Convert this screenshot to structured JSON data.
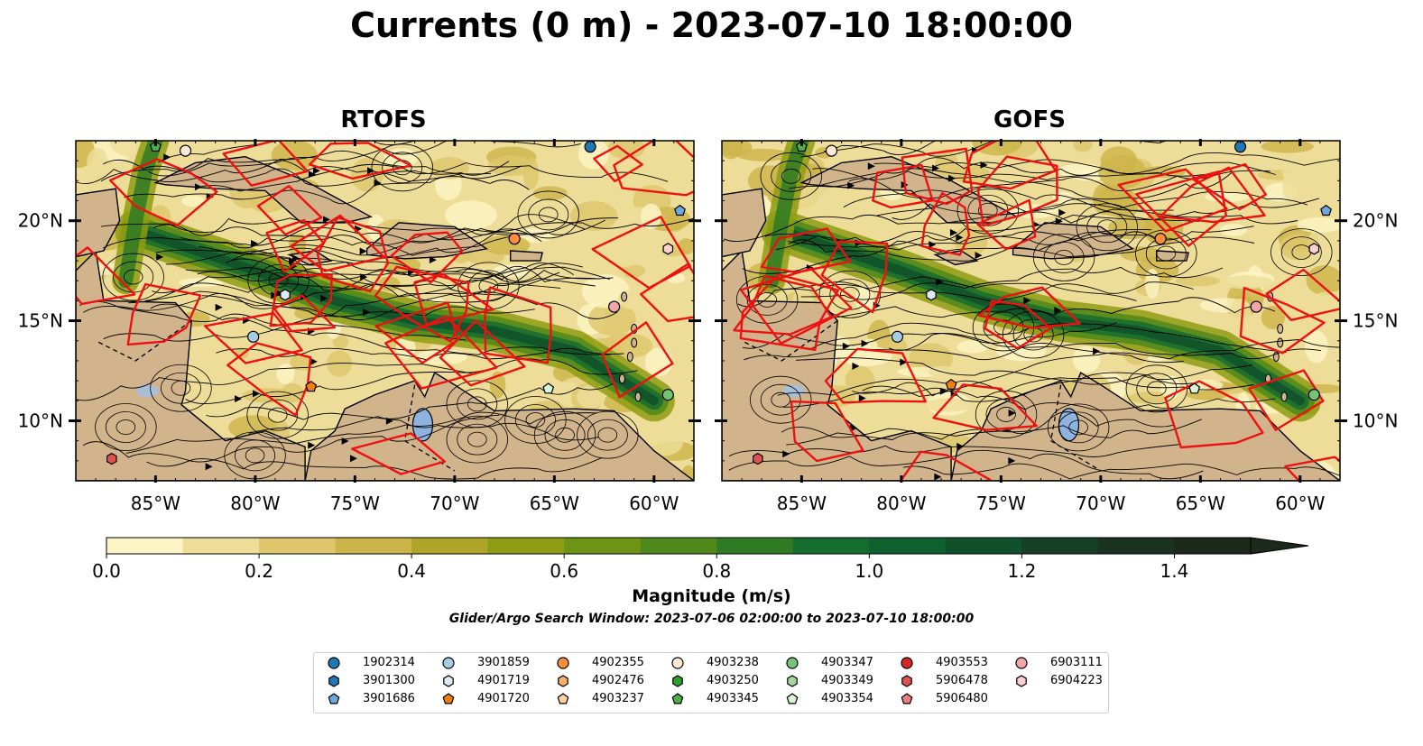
{
  "title": "Currents (0 m) - 2023-07-10 18:00:00",
  "panels": [
    {
      "title": "RTOFS"
    },
    {
      "title": "GOFS"
    }
  ],
  "lon_ticks": [
    "85°W",
    "80°W",
    "75°W",
    "70°W",
    "65°W",
    "60°W"
  ],
  "lat_ticks": [
    "20°N",
    "15°N",
    "10°N"
  ],
  "colorbar": {
    "label": "Magnitude (m/s)",
    "ticks": [
      "0.0",
      "0.2",
      "0.4",
      "0.6",
      "0.8",
      "1.0",
      "1.2",
      "1.4"
    ],
    "range": [
      0,
      1.5
    ],
    "extend": "max",
    "colors": [
      "#fbf5c5",
      "#eedd98",
      "#ddc66c",
      "#cdb44a",
      "#aea42a",
      "#8e9c13",
      "#6e9415",
      "#4f881b",
      "#2f7a23",
      "#156c2f",
      "#0f5f2f",
      "#10502b",
      "#163f25",
      "#1a321f",
      "#1b2a1a"
    ]
  },
  "search_window": "Glider/Argo Search Window: 2023-07-06 02:00:00 to 2023-07-10 18:00:00",
  "legend": [
    {
      "id": "1902314",
      "marker": "circle",
      "color": "#1f77b4"
    },
    {
      "id": "3901300",
      "marker": "hexagon",
      "color": "#1f77b4"
    },
    {
      "id": "3901686",
      "marker": "pentagon",
      "color": "#6fa8dc"
    },
    {
      "id": "3901859",
      "marker": "circle",
      "color": "#a6cee3"
    },
    {
      "id": "4901719",
      "marker": "hexagon",
      "color": "#deebf7"
    },
    {
      "id": "4901720",
      "marker": "pentagon",
      "color": "#f07f0e"
    },
    {
      "id": "4902355",
      "marker": "circle",
      "color": "#fd8d3c"
    },
    {
      "id": "4902476",
      "marker": "hexagon",
      "color": "#fdae6b"
    },
    {
      "id": "4903237",
      "marker": "pentagon",
      "color": "#fdd0a2"
    },
    {
      "id": "4903238",
      "marker": "circle",
      "color": "#feebd6"
    },
    {
      "id": "4903250",
      "marker": "hexagon",
      "color": "#2ca02c"
    },
    {
      "id": "4903345",
      "marker": "pentagon",
      "color": "#4daf4a"
    },
    {
      "id": "4903347",
      "marker": "circle",
      "color": "#74c476"
    },
    {
      "id": "4903349",
      "marker": "hexagon",
      "color": "#a1d99b"
    },
    {
      "id": "4903354",
      "marker": "pentagon",
      "color": "#d7f5d2"
    },
    {
      "id": "4903553",
      "marker": "circle",
      "color": "#d62728"
    },
    {
      "id": "5906478",
      "marker": "hexagon",
      "color": "#e0524e"
    },
    {
      "id": "5906480",
      "marker": "pentagon",
      "color": "#ee7e7e"
    },
    {
      "id": "6903111",
      "marker": "circle",
      "color": "#f4a6a6"
    },
    {
      "id": "6904223",
      "marker": "hexagon",
      "color": "#fbd0d0"
    }
  ],
  "chart_data": {
    "type": "map",
    "extent": {
      "lon": [
        -89,
        -58
      ],
      "lat": [
        7,
        24
      ]
    },
    "variable": "surface current magnitude",
    "units": "m/s",
    "floats": {
      "RTOFS": [
        {
          "id": "3901859",
          "lon": -80.1,
          "lat": 14.2
        },
        {
          "id": "4901719",
          "lon": -78.5,
          "lat": 16.3
        },
        {
          "id": "4901720",
          "lon": -77.2,
          "lat": 11.7
        },
        {
          "id": "4902355",
          "lon": -67.0,
          "lat": 19.1
        },
        {
          "id": "4903238",
          "lon": -83.5,
          "lat": 23.5
        },
        {
          "id": "4903345",
          "lon": -85.0,
          "lat": 23.7
        },
        {
          "id": "4903347",
          "lon": -59.3,
          "lat": 11.3
        },
        {
          "id": "4903354",
          "lon": -65.3,
          "lat": 11.6
        },
        {
          "id": "1902314",
          "lon": -63.2,
          "lat": 23.7
        },
        {
          "id": "3901686",
          "lon": -58.7,
          "lat": 20.5
        },
        {
          "id": "5906478",
          "lon": -87.2,
          "lat": 8.1
        },
        {
          "id": "6903111",
          "lon": -62.0,
          "lat": 15.7
        },
        {
          "id": "6904223",
          "lon": -59.3,
          "lat": 18.6
        }
      ],
      "GOFS": [
        {
          "id": "3901859",
          "lon": -80.2,
          "lat": 14.2
        },
        {
          "id": "4901719",
          "lon": -78.5,
          "lat": 16.3
        },
        {
          "id": "4901720",
          "lon": -77.5,
          "lat": 11.8
        },
        {
          "id": "4902355",
          "lon": -67.0,
          "lat": 19.1
        },
        {
          "id": "4903238",
          "lon": -83.5,
          "lat": 23.5
        },
        {
          "id": "4903345",
          "lon": -85.0,
          "lat": 23.7
        },
        {
          "id": "4903347",
          "lon": -59.3,
          "lat": 11.3
        },
        {
          "id": "4903354",
          "lon": -65.3,
          "lat": 11.6
        },
        {
          "id": "1902314",
          "lon": -63.0,
          "lat": 23.7
        },
        {
          "id": "3901686",
          "lon": -58.7,
          "lat": 20.5
        },
        {
          "id": "5906478",
          "lon": -87.2,
          "lat": 8.1
        },
        {
          "id": "6903111",
          "lon": -62.2,
          "lat": 15.7
        },
        {
          "id": "6904223",
          "lon": -59.3,
          "lat": 18.6
        }
      ]
    },
    "colorbar_range": [
      0,
      1.5
    ]
  }
}
